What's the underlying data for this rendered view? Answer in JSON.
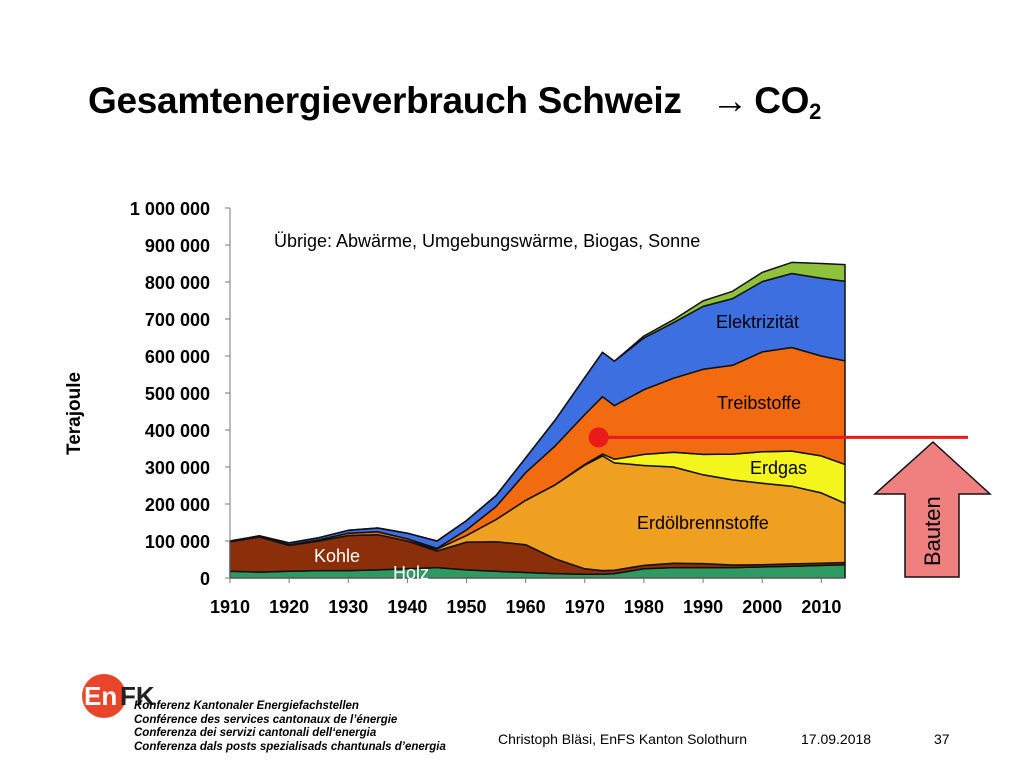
{
  "title": {
    "main": "Gesamtenergieverbrauch Schweiz",
    "arrow": "→",
    "target": "CO",
    "target_sub": "2"
  },
  "chart_data": {
    "type": "area",
    "stacked": true,
    "title": "Gesamtenergieverbrauch Schweiz → CO2",
    "ylabel": "Terajoule",
    "xlabel": "",
    "xlim": [
      1910,
      2014
    ],
    "ylim": [
      0,
      1000000
    ],
    "x_ticks": [
      1910,
      1920,
      1930,
      1940,
      1950,
      1960,
      1970,
      1980,
      1990,
      2000,
      2010
    ],
    "x_tick_labels": [
      "1910",
      "1920",
      "1930",
      "1940",
      "1950",
      "1960",
      "1970",
      "1980",
      "1990",
      "2000",
      "2010"
    ],
    "y_ticks": [
      0,
      100000,
      200000,
      300000,
      400000,
      500000,
      600000,
      700000,
      800000,
      900000,
      1000000
    ],
    "y_tick_labels": [
      "0",
      "100 000",
      "200 000",
      "300 000",
      "400 000",
      "500 000",
      "600 000",
      "700 000",
      "800 000",
      "900 000",
      "1 000 000"
    ],
    "grid": false,
    "x": [
      1910,
      1915,
      1920,
      1925,
      1930,
      1935,
      1940,
      1945,
      1950,
      1955,
      1960,
      1965,
      1970,
      1973,
      1975,
      1980,
      1985,
      1990,
      1995,
      2000,
      2005,
      2010,
      2014
    ],
    "series": [
      {
        "name": "Holz",
        "color": "#2e9a62",
        "values": [
          18000,
          16000,
          18000,
          20000,
          20000,
          22000,
          25000,
          28000,
          22000,
          18000,
          15000,
          12000,
          10000,
          10000,
          12000,
          25000,
          28000,
          28000,
          28000,
          30000,
          32000,
          34000,
          36000
        ]
      },
      {
        "name": "Kohle",
        "color": "#8b2e0a",
        "values": [
          80000,
          95000,
          70000,
          80000,
          95000,
          95000,
          75000,
          45000,
          75000,
          80000,
          75000,
          40000,
          15000,
          10000,
          9000,
          9000,
          12000,
          11000,
          7000,
          6000,
          6000,
          6000,
          6000
        ]
      },
      {
        "name": "Erdölbrennstoffe",
        "color": "#f0a020",
        "values": [
          0,
          0,
          0,
          0,
          0,
          0,
          0,
          5000,
          18000,
          60000,
          120000,
          200000,
          280000,
          310000,
          290000,
          270000,
          260000,
          240000,
          230000,
          220000,
          210000,
          190000,
          160000
        ]
      },
      {
        "name": "Erdgas",
        "color": "#f5f51e",
        "values": [
          0,
          0,
          0,
          0,
          0,
          0,
          0,
          0,
          0,
          0,
          0,
          0,
          2000,
          5000,
          10000,
          30000,
          40000,
          55000,
          70000,
          85000,
          95000,
          100000,
          105000
        ]
      },
      {
        "name": "Treibstoffe",
        "color": "#f26b10",
        "values": [
          0,
          0,
          2000,
          3000,
          6000,
          8000,
          6000,
          2000,
          15000,
          35000,
          75000,
          105000,
          135000,
          155000,
          145000,
          175000,
          200000,
          230000,
          240000,
          270000,
          280000,
          270000,
          280000
        ]
      },
      {
        "name": "Elektrizität",
        "color": "#3d6fe0",
        "values": [
          2000,
          3000,
          5000,
          6000,
          8000,
          10000,
          15000,
          20000,
          25000,
          30000,
          40000,
          70000,
          100000,
          120000,
          120000,
          140000,
          150000,
          170000,
          180000,
          190000,
          200000,
          210000,
          215000
        ]
      },
      {
        "name": "Übrige: Abwärme, Umgebungswärme, Biogas, Sonne",
        "color": "#8ec23a",
        "values": [
          0,
          0,
          0,
          0,
          0,
          0,
          0,
          0,
          0,
          0,
          0,
          0,
          0,
          0,
          0,
          5000,
          8000,
          15000,
          20000,
          25000,
          30000,
          40000,
          45000
        ]
      }
    ],
    "annotations": {
      "uebrige": "Übrige: Abwärme, Umgebungswärme, Biogas, Sonne",
      "elektrizitaet": "Elektrizität",
      "treibstoffe": "Treibstoffe",
      "erdgas": "Erdgas",
      "erdoelbrennstoffe": "Erdölbrennstoffe",
      "kohle": "Kohle",
      "holz": "Holz"
    },
    "marker": {
      "x": 1972,
      "y": 380000,
      "color": "#e81a1a"
    },
    "reference_line": {
      "y": 380000,
      "from_x": 1972,
      "color": "#e81a1a"
    },
    "callout": {
      "label": "Bauten",
      "color": "#f08080"
    }
  },
  "logo": {
    "En": "En",
    "FK": "FK",
    "color": "#e8452a"
  },
  "org_lines": [
    "Konferenz Kantonaler Energiefachstellen",
    "Conférence des services cantonaux de l’énergie",
    "Conferenza dei servizi cantonali dell‘energia",
    "Conferenza dals posts spezialisads chantunals d’energia"
  ],
  "footer": {
    "author": "Christoph Bläsi, EnFS Kanton Solothurn",
    "date": "17.09.2018",
    "page": "37"
  }
}
